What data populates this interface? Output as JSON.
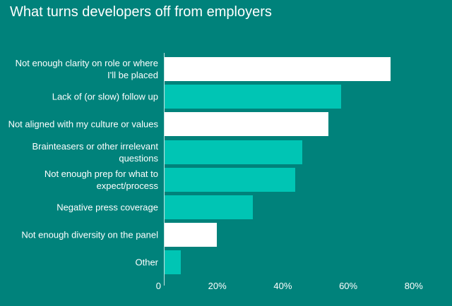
{
  "title": "What turns developers off from employers",
  "colors": {
    "background": "#00827B",
    "bar_primary": "#00C5B4",
    "bar_highlight": "#FFFFFF",
    "text": "#FFFFFF",
    "axis_line": "#E9F5F3"
  },
  "chart_data": {
    "type": "bar",
    "orientation": "horizontal",
    "title": "What turns developers off from employers",
    "categories": [
      "Not enough clarity on role or where\nI'll be placed",
      "Lack of (or slow) follow up",
      "Not aligned with my culture or values",
      "Brainteasers or other irrelevant\nquestions",
      "Not enough prep for what to\nexpect/process",
      "Negative press coverage",
      "Not enough diversity on the panel",
      "Other"
    ],
    "values": [
      69,
      54,
      50,
      42,
      40,
      27,
      16,
      5
    ],
    "unit": "%",
    "bar_colors": [
      "white",
      "teal",
      "white",
      "teal",
      "teal",
      "teal",
      "white",
      "teal"
    ],
    "xlabel": "",
    "ylabel": "",
    "xlim": [
      0,
      88
    ],
    "xticks": [
      {
        "value": 0,
        "label": "0"
      },
      {
        "value": 20,
        "label": "20%"
      },
      {
        "value": 40,
        "label": "40%"
      },
      {
        "value": 60,
        "label": "60%"
      },
      {
        "value": 80,
        "label": "80%"
      }
    ],
    "grid": false,
    "legend": false
  }
}
